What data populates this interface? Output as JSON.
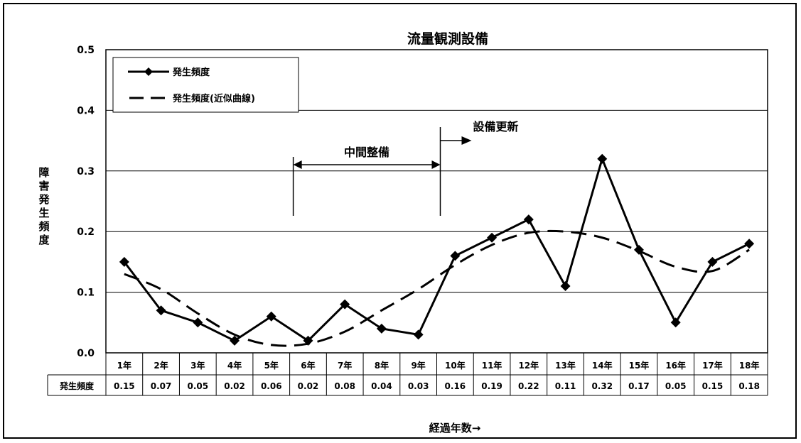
{
  "chart_data": {
    "type": "line",
    "title": "流量観測設備",
    "categories": [
      "1年",
      "2年",
      "3年",
      "4年",
      "5年",
      "6年",
      "7年",
      "8年",
      "9年",
      "10年",
      "11年",
      "12年",
      "13年",
      "14年",
      "15年",
      "16年",
      "17年",
      "18年"
    ],
    "series": [
      {
        "name": "発生頻度",
        "style": "solid-line-diamond-markers",
        "values": [
          0.15,
          0.07,
          0.05,
          0.02,
          0.06,
          0.02,
          0.08,
          0.04,
          0.03,
          0.16,
          0.19,
          0.22,
          0.11,
          0.32,
          0.17,
          0.05,
          0.15,
          0.18
        ]
      },
      {
        "name": "発生頻度(近似曲線)",
        "style": "dashed-trendline",
        "values": [
          0.13,
          0.105,
          0.065,
          0.03,
          0.013,
          0.015,
          0.035,
          0.07,
          0.105,
          0.145,
          0.178,
          0.198,
          0.2,
          0.19,
          0.168,
          0.142,
          0.135,
          0.17
        ]
      }
    ],
    "ylim": [
      0,
      0.5
    ],
    "yticks": [
      "0.0",
      "0.1",
      "0.2",
      "0.3",
      "0.4",
      "0.5"
    ],
    "ylabel": "障害発生頻度",
    "xlabel": "経過年数→",
    "grid": "horizontal",
    "legend_position": "top-left",
    "data_table": {
      "row_label": "発生頻度",
      "values": [
        "0.15",
        "0.07",
        "0.05",
        "0.02",
        "0.06",
        "0.02",
        "0.08",
        "0.04",
        "0.03",
        "0.16",
        "0.19",
        "0.22",
        "0.11",
        "0.32",
        "0.17",
        "0.05",
        "0.15",
        "0.18"
      ]
    },
    "annotations": {
      "interval": {
        "label": "中間整備",
        "from_category": "6年",
        "to_category": "10年"
      },
      "renewal": {
        "label": "設備更新",
        "at_category": "10年"
      }
    }
  }
}
